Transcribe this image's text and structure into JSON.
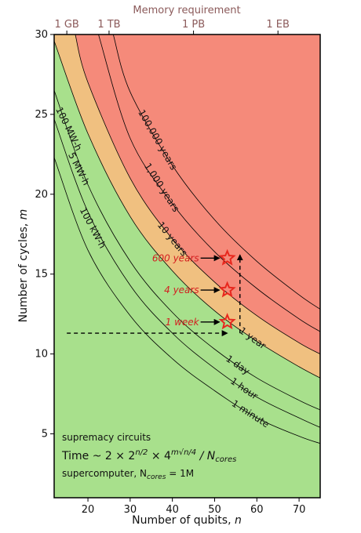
{
  "chart_data": {
    "type": "line",
    "title": "",
    "xlabel_text": "Number of qubits, ",
    "xlabel_var": "n",
    "ylabel_text": "Number of cycles, ",
    "ylabel_var": "m",
    "xlim": [
      12,
      75
    ],
    "ylim": [
      1,
      30
    ],
    "x_ticks": [
      20,
      30,
      40,
      50,
      60,
      70
    ],
    "y_ticks": [
      5,
      10,
      15,
      20,
      25,
      30
    ],
    "top_axis": {
      "label": "Memory requirement",
      "ticks": [
        {
          "x": 15,
          "label": "1 GB"
        },
        {
          "x": 25,
          "label": "1 TB"
        },
        {
          "x": 45,
          "label": "1 PB"
        },
        {
          "x": 65,
          "label": "1 EB"
        }
      ]
    },
    "time_contours": [
      {
        "name": "1 minute",
        "points": [
          [
            12,
            22.3
          ],
          [
            20,
            16.5
          ],
          [
            30,
            12.4
          ],
          [
            40,
            9.7
          ],
          [
            50,
            7.7
          ],
          [
            60,
            6.0
          ],
          [
            70,
            4.85
          ],
          [
            75,
            4.4
          ]
        ]
      },
      {
        "name": "1 hour",
        "points": [
          [
            12,
            24.7
          ],
          [
            20,
            18.9
          ],
          [
            30,
            14.3
          ],
          [
            40,
            11.3
          ],
          [
            50,
            9.1
          ],
          [
            60,
            7.3
          ],
          [
            70,
            6.0
          ],
          [
            75,
            5.4
          ]
        ]
      },
      {
        "name": "1 day",
        "points": [
          [
            12,
            26.5
          ],
          [
            20,
            20.6
          ],
          [
            30,
            15.8
          ],
          [
            40,
            12.6
          ],
          [
            50,
            10.3
          ],
          [
            60,
            8.5
          ],
          [
            70,
            7.1
          ],
          [
            75,
            6.5
          ]
        ]
      },
      {
        "name": "1 year",
        "points": [
          [
            12,
            29.6
          ],
          [
            20,
            23.8
          ],
          [
            30,
            18.6
          ],
          [
            40,
            15.2
          ],
          [
            50,
            12.7
          ],
          [
            60,
            10.8
          ],
          [
            70,
            9.2
          ],
          [
            75,
            8.5
          ]
        ]
      },
      {
        "name": "10 years",
        "points": [
          [
            17,
            30
          ],
          [
            20,
            27.0
          ],
          [
            30,
            21.0
          ],
          [
            40,
            17.2
          ],
          [
            50,
            14.5
          ],
          [
            60,
            12.4
          ],
          [
            70,
            10.7
          ],
          [
            75,
            10.0
          ]
        ]
      },
      {
        "name": "1,000 years",
        "points": [
          [
            22.5,
            30
          ],
          [
            30,
            23.5
          ],
          [
            40,
            19.4
          ],
          [
            50,
            16.4
          ],
          [
            60,
            14.1
          ],
          [
            70,
            12.2
          ],
          [
            75,
            11.4
          ]
        ]
      },
      {
        "name": "100,000 years",
        "points": [
          [
            26,
            30
          ],
          [
            30,
            26.4
          ],
          [
            40,
            21.8
          ],
          [
            50,
            18.4
          ],
          [
            60,
            15.8
          ],
          [
            70,
            13.7
          ],
          [
            75,
            12.8
          ]
        ]
      }
    ],
    "energy_contours": [
      {
        "name": "100 kW-h",
        "label_at": [
          20.5,
          17.8
        ],
        "label_angle": 62
      },
      {
        "name": "5 MW-h",
        "label_at": [
          17.2,
          21.5
        ],
        "label_angle": 63
      },
      {
        "name": "100 MW-h",
        "label_at": [
          14.8,
          24.0
        ],
        "label_angle": 64
      }
    ],
    "boundaries": {
      "green_upper": [
        [
          12,
          29.6
        ],
        [
          20,
          23.8
        ],
        [
          30,
          18.6
        ],
        [
          40,
          15.2
        ],
        [
          50,
          12.7
        ],
        [
          60,
          10.8
        ],
        [
          70,
          9.2
        ],
        [
          75,
          8.5
        ]
      ],
      "red_lower": [
        [
          17,
          30
        ],
        [
          20,
          27.0
        ],
        [
          30,
          21.0
        ],
        [
          40,
          17.2
        ],
        [
          50,
          14.5
        ],
        [
          60,
          12.4
        ],
        [
          70,
          10.7
        ],
        [
          75,
          10.0
        ]
      ]
    },
    "markers": [
      {
        "x": 53,
        "y": 16,
        "label": "600 years"
      },
      {
        "x": 53,
        "y": 14,
        "label": "4 years"
      },
      {
        "x": 53,
        "y": 12,
        "label": "1 week"
      }
    ],
    "dashed_paths": [
      {
        "points": [
          [
            15,
            11.3
          ],
          [
            53,
            11.3
          ]
        ]
      },
      {
        "points": [
          [
            56,
            11.3
          ],
          [
            56,
            16.2
          ]
        ]
      }
    ],
    "annotations": {
      "line1": "supremacy circuits",
      "line2_prefix": "Time ~ 2 × 2",
      "line2_exp1": "n/2",
      "line2_mid": " × 4",
      "line2_exp2": "m√n/4",
      "line2_slash": " / N",
      "line2_sub": "cores",
      "line3_prefix": "supercomputer, N",
      "line3_sub": "cores",
      "line3_suffix": " = 1M"
    },
    "colors": {
      "green": "#a8e08c",
      "orange": "#f0c080",
      "red": "#f58a7a",
      "marker": "#e8281e",
      "top_axis": "#8b5a5a"
    }
  }
}
